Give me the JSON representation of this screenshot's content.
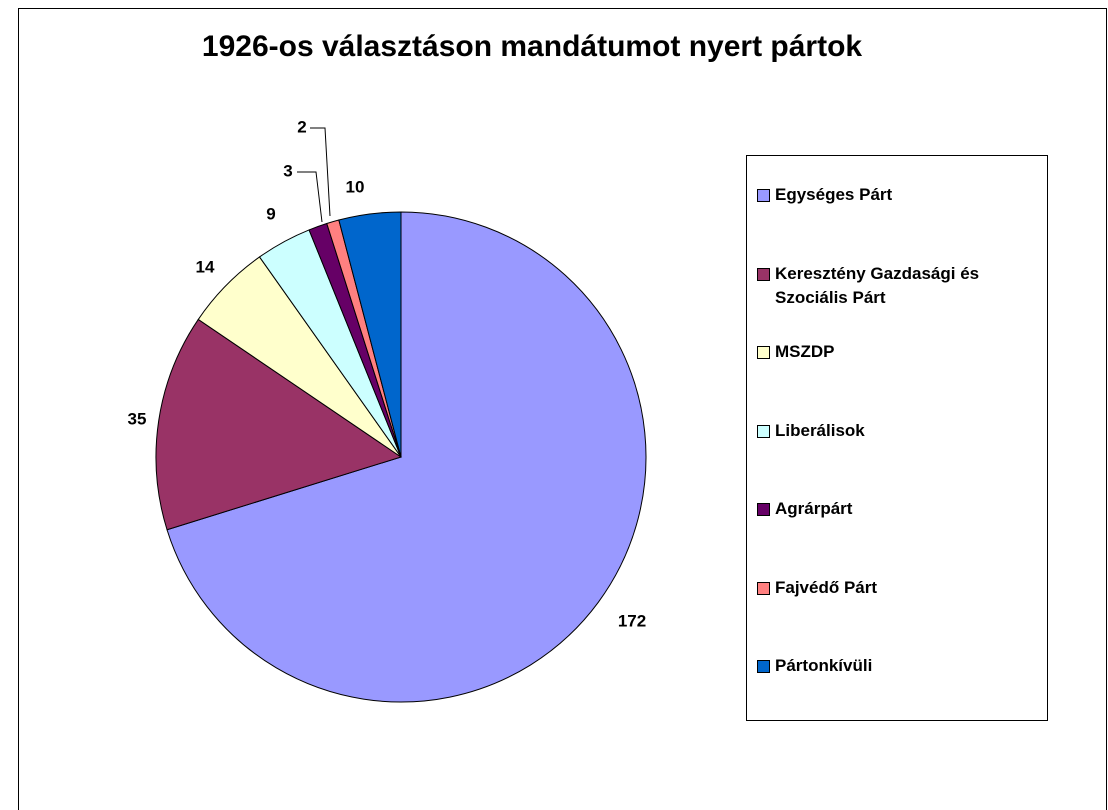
{
  "chart_data": {
    "type": "pie",
    "title": "1926-os választáson mandátumot nyert pártok",
    "categories": [
      "Egységes Párt",
      "Keresztény Gazdasági és Szociális Párt",
      "MSZDP",
      "Liberálisok",
      "Agrárpárt",
      "Fajvédő Párt",
      "Pártonkívüli"
    ],
    "values": [
      172,
      35,
      14,
      9,
      3,
      2,
      10
    ],
    "colors": [
      "#9999ff",
      "#993366",
      "#ffffcc",
      "#ccffff",
      "#660066",
      "#ff8080",
      "#0066cc"
    ],
    "legend": "right"
  }
}
